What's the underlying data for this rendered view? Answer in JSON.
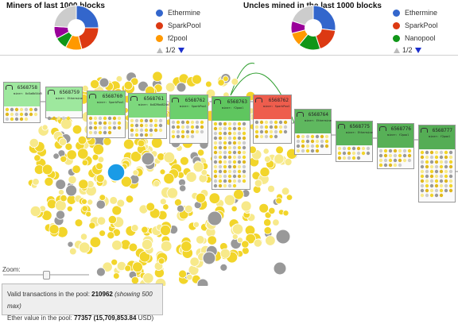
{
  "miners_panel": {
    "title": "Miners of last 1000 blocks",
    "legend": [
      {
        "name": "Ethermine",
        "color": "#3366cc"
      },
      {
        "name": "SparkPool",
        "color": "#dc3912"
      },
      {
        "name": "f2pool",
        "color": "#ff9900"
      }
    ],
    "pager": "1/2",
    "slices": [
      {
        "value": 25,
        "color": "#3366cc"
      },
      {
        "value": 21,
        "color": "#dc3912"
      },
      {
        "value": 12,
        "color": "#ff9900"
      },
      {
        "value": 9,
        "color": "#109618"
      },
      {
        "value": 9,
        "color": "#990099"
      },
      {
        "value": 24,
        "color": "#cccccc"
      }
    ]
  },
  "uncles_panel": {
    "title": "Uncles mined in the last 1000 blocks",
    "legend": [
      {
        "name": "Ethermine",
        "color": "#3366cc"
      },
      {
        "name": "SparkPool",
        "color": "#dc3912"
      },
      {
        "name": "Nanopool",
        "color": "#109618"
      }
    ],
    "pager": "1/2",
    "slices": [
      {
        "value": 27,
        "color": "#3366cc"
      },
      {
        "value": 18,
        "color": "#dc3912"
      },
      {
        "value": 16,
        "color": "#109618"
      },
      {
        "value": 10,
        "color": "#ff9900"
      },
      {
        "value": 9,
        "color": "#990099"
      },
      {
        "value": 20,
        "color": "#cccccc"
      }
    ]
  },
  "blocks": [
    {
      "number": "6568758",
      "sub": "miner: 0x5a0b54d5dc17e...",
      "color": "#9ee89e"
    },
    {
      "number": "6568759",
      "sub": "miner: Ethermine",
      "color": "#9ee89e"
    },
    {
      "number": "6568760",
      "sub": "miner: SparkPool",
      "color": "#7dd87d"
    },
    {
      "number": "6568761",
      "sub": "miner: 0x829bd824b0169...",
      "color": "#7dd87d"
    },
    {
      "number": "6568762",
      "sub": "miner: SparkPool",
      "color": "#6ccf6c"
    },
    {
      "number": "6568763",
      "sub": "miner: f2pool",
      "color": "#5fc65f"
    },
    {
      "number": "6568762",
      "sub": "miner: SparkPool",
      "color": "#ee5d4d"
    },
    {
      "number": "6568764",
      "sub": "miner: Ethermine",
      "color": "#5fb85f"
    },
    {
      "number": "6568775",
      "sub": "miner: Ethermine",
      "color": "#5ab35a"
    },
    {
      "number": "6568776",
      "sub": "miner: f2pool",
      "color": "#57b057"
    },
    {
      "number": "6568777",
      "sub": "miner: f2pool",
      "color": "#55ad55"
    }
  ],
  "zoom_label": "Zoom:",
  "info": {
    "tx_label": "Valid transactions in the pool:",
    "tx_count": "210962",
    "tx_note": "(showing 500 max)",
    "ether_label": "Ether value in the pool:",
    "ether_value": "77357",
    "usd_value": "(15,709,853.84",
    "usd_unit": "USD)"
  },
  "colors": {
    "coin_yellow": "#f2d52a",
    "coin_light": "#f7e98a",
    "coin_gray": "#999999",
    "highlight_blue": "#1a9be6",
    "link_green": "#2e9e2e"
  }
}
